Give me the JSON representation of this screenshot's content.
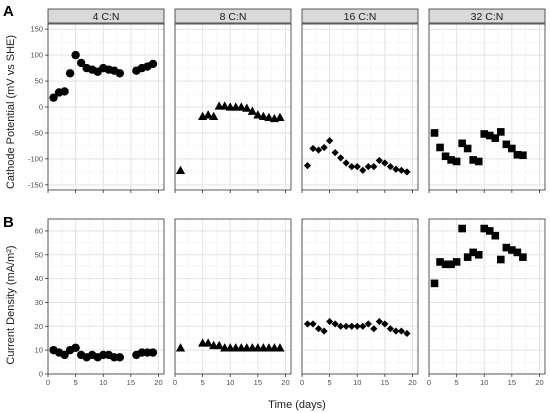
{
  "figure": {
    "panel_letters": [
      "A",
      "B"
    ],
    "x_label": "Time (days)",
    "facets": [
      "4 C:N",
      "8 C:N",
      "16 C:N",
      "32 C:N"
    ]
  },
  "chart_data": [
    {
      "type": "scatter",
      "panel": "A",
      "ylabel": "Cathode Potential (mV vs SHE)",
      "xlabel": "",
      "ylim": [
        -160,
        160
      ],
      "yticks": [
        -150,
        -100,
        -50,
        0,
        50,
        100,
        150
      ],
      "xlim": [
        0,
        21
      ],
      "xticks": [
        0,
        5,
        10,
        15,
        20
      ],
      "grid": true,
      "facets": [
        {
          "title": "4 C:N",
          "marker": "circle",
          "x": [
            1,
            2,
            3,
            4,
            5,
            6,
            7,
            8,
            9,
            10,
            11,
            12,
            13,
            16,
            17,
            18,
            19
          ],
          "y": [
            18,
            28,
            30,
            65,
            100,
            85,
            75,
            72,
            68,
            75,
            72,
            70,
            65,
            70,
            75,
            78,
            83
          ]
        },
        {
          "title": "8 C:N",
          "marker": "triangle",
          "x": [
            1,
            5,
            6,
            7,
            8,
            9,
            10,
            11,
            12,
            13,
            14,
            15,
            16,
            17,
            18,
            19
          ],
          "y": [
            -122,
            -18,
            -15,
            -18,
            2,
            2,
            0,
            0,
            0,
            -2,
            -8,
            -15,
            -18,
            -20,
            -22,
            -20
          ]
        },
        {
          "title": "16 C:N",
          "marker": "diamond",
          "x": [
            1,
            2,
            3,
            4,
            5,
            6,
            7,
            8,
            9,
            10,
            11,
            12,
            13,
            14,
            15,
            16,
            17,
            18,
            19
          ],
          "y": [
            -113,
            -80,
            -83,
            -78,
            -65,
            -88,
            -98,
            -108,
            -115,
            -115,
            -122,
            -115,
            -115,
            -103,
            -108,
            -115,
            -120,
            -122,
            -125
          ]
        },
        {
          "title": "32 C:N",
          "marker": "square",
          "x": [
            1,
            2,
            3,
            4,
            5,
            6,
            7,
            8,
            9,
            10,
            11,
            12,
            13,
            14,
            15,
            16,
            17
          ],
          "y": [
            -50,
            -78,
            -95,
            -102,
            -105,
            -70,
            -80,
            -102,
            -105,
            -52,
            -55,
            -60,
            -48,
            -72,
            -80,
            -92,
            -93
          ]
        }
      ]
    },
    {
      "type": "scatter",
      "panel": "B",
      "ylabel": "Current Density (mA/m²)",
      "xlabel": "Time (days)",
      "ylim": [
        0,
        65
      ],
      "yticks": [
        0,
        10,
        20,
        30,
        40,
        50,
        60
      ],
      "xlim": [
        0,
        21
      ],
      "xticks": [
        0,
        5,
        10,
        15,
        20
      ],
      "grid": true,
      "facets": [
        {
          "title": "4 C:N",
          "marker": "circle",
          "x": [
            1,
            2,
            3,
            4,
            5,
            6,
            7,
            8,
            9,
            10,
            11,
            12,
            13,
            16,
            17,
            18,
            19
          ],
          "y": [
            10,
            9,
            8,
            10,
            11,
            8,
            7,
            8,
            7,
            8,
            8,
            7,
            7,
            8,
            9,
            9,
            9
          ]
        },
        {
          "title": "8 C:N",
          "marker": "triangle",
          "x": [
            1,
            5,
            6,
            7,
            8,
            9,
            10,
            11,
            12,
            13,
            14,
            15,
            16,
            17,
            18,
            19
          ],
          "y": [
            11,
            13,
            13,
            12,
            12,
            11,
            11,
            11,
            11,
            11,
            11,
            11,
            11,
            11,
            11,
            11
          ]
        },
        {
          "title": "16 C:N",
          "marker": "diamond",
          "x": [
            1,
            2,
            3,
            4,
            5,
            6,
            7,
            8,
            9,
            10,
            11,
            12,
            13,
            14,
            15,
            16,
            17,
            18,
            19
          ],
          "y": [
            21,
            21,
            19,
            18,
            22,
            21,
            20,
            20,
            20,
            20,
            20,
            21,
            19,
            22,
            21,
            19,
            18,
            18,
            17
          ]
        },
        {
          "title": "32 C:N",
          "marker": "square",
          "x": [
            1,
            2,
            3,
            4,
            5,
            6,
            7,
            8,
            9,
            10,
            11,
            12,
            13,
            14,
            15,
            16,
            17
          ],
          "y": [
            38,
            47,
            46,
            46,
            47,
            61,
            49,
            51,
            50,
            61,
            60,
            58,
            48,
            53,
            52,
            51,
            49
          ]
        }
      ]
    }
  ]
}
